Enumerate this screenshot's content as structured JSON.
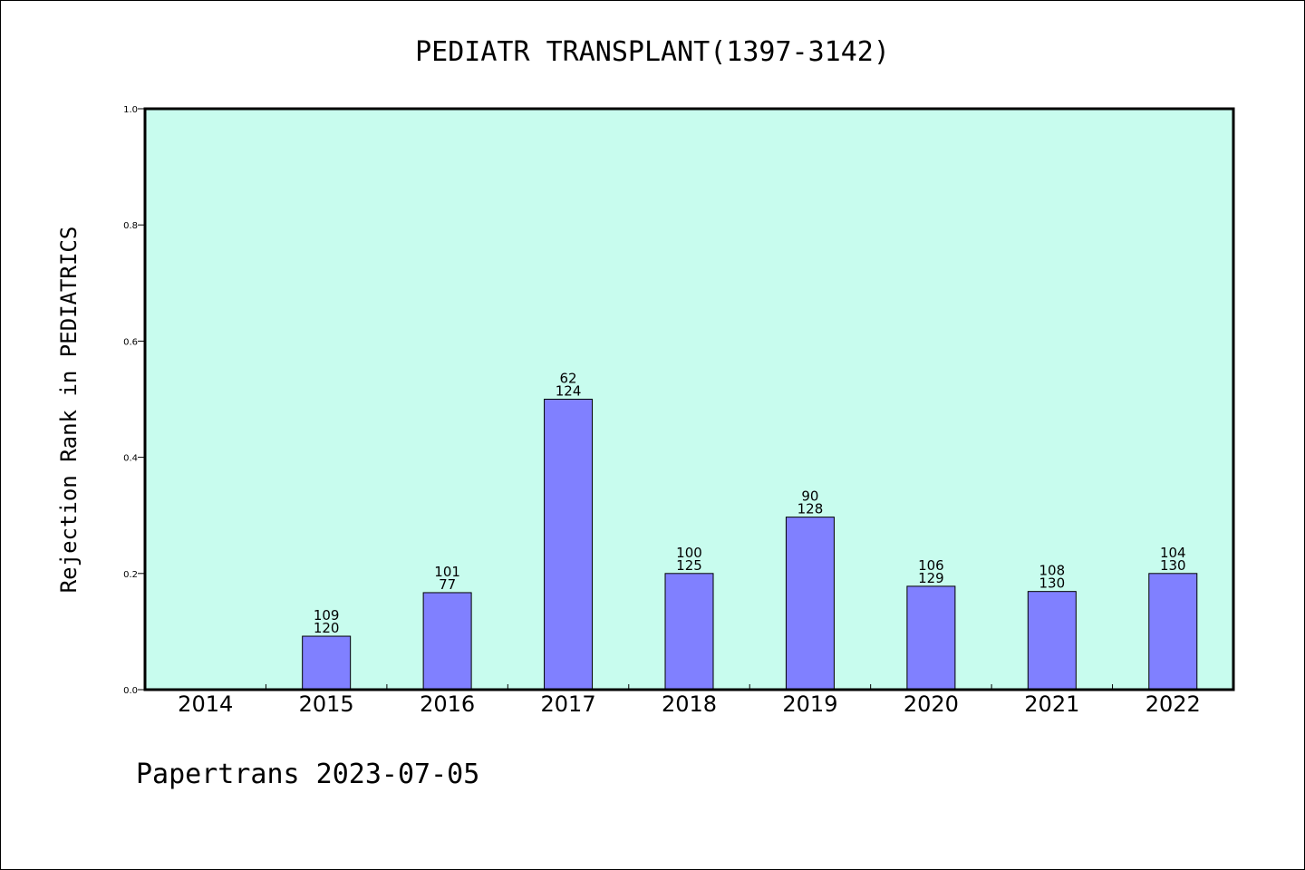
{
  "chart_data": {
    "type": "bar",
    "title": "PEDIATR TRANSPLANT(1397-3142)",
    "ylabel": "Rejection Rank in PEDIATRICS",
    "xlabel": "",
    "categories": [
      "2014",
      "2015",
      "2016",
      "2017",
      "2018",
      "2019",
      "2020",
      "2021",
      "2022"
    ],
    "values": [
      0.0,
      0.092,
      0.167,
      0.5,
      0.2,
      0.297,
      0.178,
      0.169,
      0.2
    ],
    "bar_labels_top": [
      "",
      "109",
      "101",
      "62",
      "100",
      "90",
      "106",
      "108",
      "104"
    ],
    "bar_labels_bottom": [
      "",
      "120",
      "77",
      "124",
      "125",
      "128",
      "129",
      "130",
      "130"
    ],
    "ylim": [
      0.0,
      1.0
    ],
    "yticks": [
      "0.0",
      "0.2",
      "0.4",
      "0.6",
      "0.8",
      "1.0"
    ],
    "grid": false,
    "colors": {
      "plot_background": "#c8fcee",
      "bar": "#8080ff",
      "bar_edge": "#000000"
    }
  },
  "footer": {
    "text": "Papertrans 2023-07-05"
  }
}
